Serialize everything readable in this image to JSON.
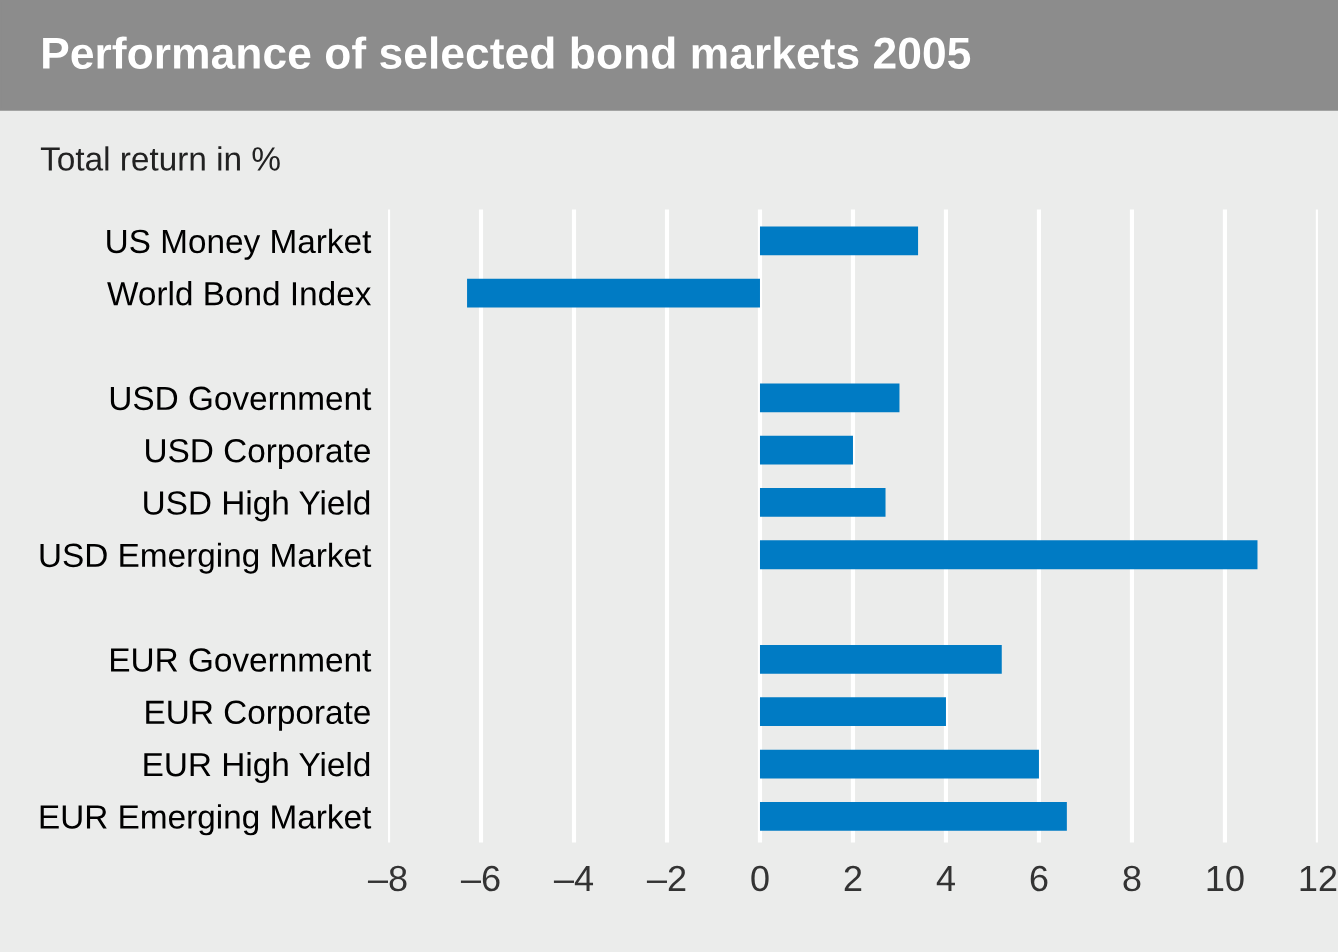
{
  "chart_data": {
    "type": "bar",
    "orientation": "horizontal",
    "title": "Performance of selected bond markets 2005",
    "subtitle": "Total return in %",
    "categories": [
      "US Money Market",
      "World Bond Index",
      null,
      "USD Government",
      "USD Corporate",
      "USD High Yield",
      "USD Emerging Market",
      null,
      "EUR Government",
      "EUR Corporate",
      "EUR High Yield",
      "EUR Emerging Market"
    ],
    "values": [
      3.4,
      -6.3,
      null,
      3.0,
      2.0,
      2.7,
      10.7,
      null,
      5.2,
      4.0,
      6.0,
      6.6
    ],
    "color": "#007bc4",
    "xlim": [
      -8,
      12
    ],
    "xticks": [
      {
        "value": -8,
        "label": "–8"
      },
      {
        "value": -6,
        "label": "–6"
      },
      {
        "value": -4,
        "label": "–4"
      },
      {
        "value": -2,
        "label": "–2"
      },
      0,
      2,
      4,
      6,
      8,
      10,
      12
    ],
    "grid": "x"
  }
}
